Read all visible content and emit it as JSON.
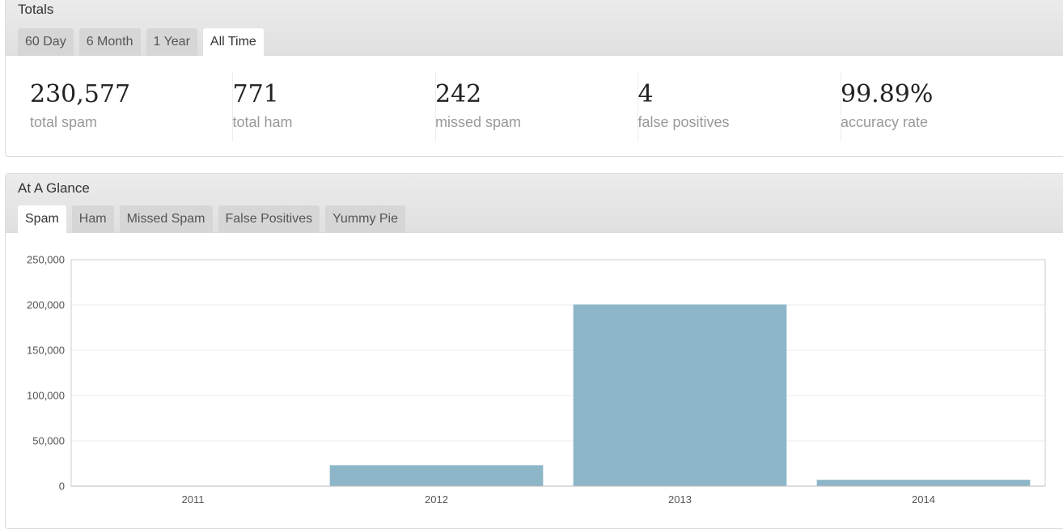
{
  "totals": {
    "title": "Totals",
    "tabs": [
      "60 Day",
      "6 Month",
      "1 Year",
      "All Time"
    ],
    "stats": [
      {
        "value": "230,577",
        "label": "total spam"
      },
      {
        "value": "771",
        "label": "total ham"
      },
      {
        "value": "242",
        "label": "missed spam"
      },
      {
        "value": "4",
        "label": "false positives"
      },
      {
        "value": "99.89%",
        "label": "accuracy rate"
      }
    ]
  },
  "glance": {
    "title": "At A Glance",
    "tabs": [
      "Spam",
      "Ham",
      "Missed Spam",
      "False Positives",
      "Yummy Pie"
    ]
  },
  "chart_data": {
    "type": "bar",
    "categories": [
      "2011",
      "2012",
      "2013",
      "2014"
    ],
    "values": [
      0,
      23000,
      200500,
      7000
    ],
    "color": "#8db6c9",
    "ylim": [
      0,
      250000
    ],
    "yticks": [
      0,
      {
        "value": 50000,
        "label": "50,000"
      },
      {
        "value": 100000,
        "label": "100,000"
      },
      {
        "value": 150000,
        "label": "150,000"
      },
      {
        "value": 200000,
        "label": "200,000"
      },
      {
        "value": 250000,
        "label": "250,000"
      }
    ],
    "grid": true
  }
}
